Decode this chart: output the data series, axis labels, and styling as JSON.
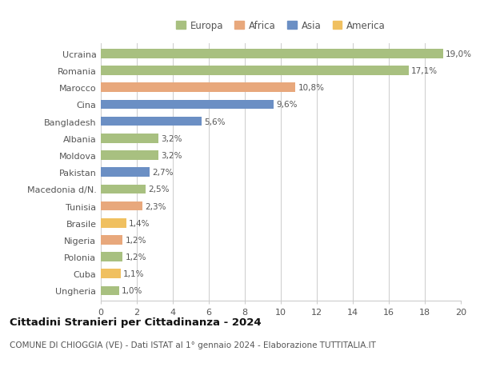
{
  "categories": [
    "Ucraina",
    "Romania",
    "Marocco",
    "Cina",
    "Bangladesh",
    "Albania",
    "Moldova",
    "Pakistan",
    "Macedonia d/N.",
    "Tunisia",
    "Brasile",
    "Nigeria",
    "Polonia",
    "Cuba",
    "Ungheria"
  ],
  "values": [
    19.0,
    17.1,
    10.8,
    9.6,
    5.6,
    3.2,
    3.2,
    2.7,
    2.5,
    2.3,
    1.4,
    1.2,
    1.2,
    1.1,
    1.0
  ],
  "labels": [
    "19,0%",
    "17,1%",
    "10,8%",
    "9,6%",
    "5,6%",
    "3,2%",
    "3,2%",
    "2,7%",
    "2,5%",
    "2,3%",
    "1,4%",
    "1,2%",
    "1,2%",
    "1,1%",
    "1,0%"
  ],
  "continents": [
    "Europa",
    "Europa",
    "Africa",
    "Asia",
    "Asia",
    "Europa",
    "Europa",
    "Asia",
    "Europa",
    "Africa",
    "America",
    "Africa",
    "Europa",
    "America",
    "Europa"
  ],
  "continent_colors": {
    "Europa": "#a8c080",
    "Africa": "#e8a87c",
    "Asia": "#6b8fc4",
    "America": "#f0c060"
  },
  "legend_order": [
    "Europa",
    "Africa",
    "Asia",
    "America"
  ],
  "xlim": [
    0,
    20
  ],
  "xticks": [
    0,
    2,
    4,
    6,
    8,
    10,
    12,
    14,
    16,
    18,
    20
  ],
  "title": "Cittadini Stranieri per Cittadinanza - 2024",
  "subtitle": "COMUNE DI CHIOGGIA (VE) - Dati ISTAT al 1° gennaio 2024 - Elaborazione TUTTITALIA.IT",
  "background_color": "#ffffff",
  "grid_color": "#cccccc",
  "bar_height": 0.55,
  "label_fontsize": 7.5,
  "ytick_fontsize": 8.0,
  "xtick_fontsize": 8.0,
  "legend_fontsize": 8.5,
  "title_fontsize": 9.5,
  "subtitle_fontsize": 7.5
}
